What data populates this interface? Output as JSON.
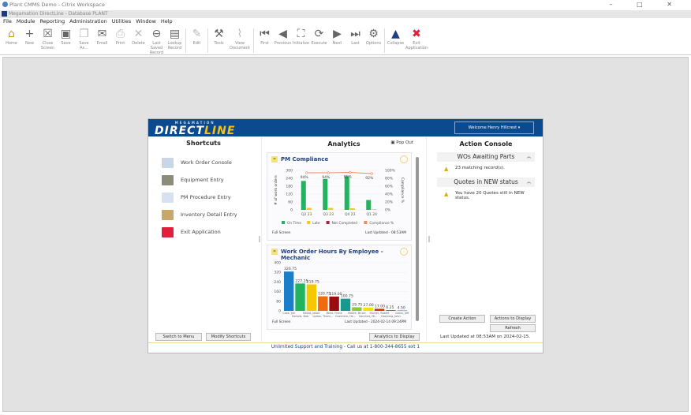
{
  "citrix_title": "Plant CMMS Demo - Citrix Workspace",
  "window_controls": "– □ ✕",
  "app_title": "Megamation DirectLine - Database PLANT",
  "menu": [
    "File",
    "Module",
    "Reporting",
    "Administration",
    "Utilities",
    "Window",
    "Help"
  ],
  "toolbar": [
    {
      "label": "Home",
      "icon": "home-icon",
      "g": "⌂",
      "dis": false
    },
    {
      "label": "New",
      "icon": "plus-icon",
      "g": "+",
      "dis": false
    },
    {
      "label": "Close Screen",
      "icon": "close-screen-icon",
      "g": "☒",
      "dis": false
    },
    {
      "label": "Save",
      "icon": "save-icon",
      "g": "▣",
      "dis": false
    },
    {
      "label": "Save As...",
      "icon": "save-as-icon",
      "g": "❐",
      "dis": true
    },
    {
      "label": "Email",
      "icon": "email-icon",
      "g": "✉",
      "dis": false
    },
    {
      "label": "Print",
      "icon": "print-icon",
      "g": "⎙",
      "dis": true
    },
    {
      "label": "Delete",
      "icon": "delete-icon",
      "g": "✕",
      "dis": true
    },
    {
      "label": "Last Saved Record",
      "icon": "back-circle-icon",
      "g": "⊖",
      "dis": false
    },
    {
      "label": "Lookup Record",
      "icon": "lookup-icon",
      "g": "▤",
      "dis": false
    },
    {
      "sep": true
    },
    {
      "label": "Edit",
      "icon": "edit-icon",
      "g": "✎",
      "dis": true
    },
    {
      "sep": true
    },
    {
      "label": "Tools",
      "icon": "tools-icon",
      "g": "⚒",
      "dis": false
    },
    {
      "label": "View Document",
      "icon": "paperclip-icon",
      "g": "⌇",
      "dis": true,
      "wide": true
    },
    {
      "sep": true
    },
    {
      "label": "First",
      "icon": "first-icon",
      "g": "⏮",
      "dis": false
    },
    {
      "label": "Previous",
      "icon": "previous-icon",
      "g": "◀",
      "dis": false
    },
    {
      "label": "Initialize",
      "icon": "binoculars-icon",
      "g": "⛶",
      "dis": false
    },
    {
      "label": "Execute",
      "icon": "refresh-icon",
      "g": "⟳",
      "dis": false
    },
    {
      "label": "Next",
      "icon": "next-icon",
      "g": "▶",
      "dis": false
    },
    {
      "label": "Last",
      "icon": "last-icon",
      "g": "⏭",
      "dis": false
    },
    {
      "label": "Options",
      "icon": "gear-icon",
      "g": "⚙",
      "dis": false
    },
    {
      "sep": true
    },
    {
      "label": "Collapse",
      "icon": "collapse-icon",
      "g": "▲",
      "dis": false
    },
    {
      "label": "Exit Application",
      "icon": "exit-icon",
      "g": "✖",
      "dis": false,
      "wide": true
    }
  ],
  "header": {
    "logo_top": "MEGAMATION",
    "logo_a": "DIRECT",
    "logo_b": "LINE",
    "welcome": "Welcome  Henry Hillcrest ▾"
  },
  "shortcuts": {
    "title": "Shortcuts",
    "items": [
      {
        "label": "Work Order Console",
        "color": "#c9d6e6"
      },
      {
        "label": "Equipment Entry",
        "color": "#8c8c7a"
      },
      {
        "label": "PM Procedure Entry",
        "color": "#d6e2f0"
      },
      {
        "label": "Inventory Detail Entry",
        "color": "#c8a86a"
      },
      {
        "label": "Exit Application",
        "color": "#e0203a"
      }
    ],
    "switch": "Switch to Menu",
    "modify": "Modify Shortcuts"
  },
  "analytics": {
    "title": "Analytics",
    "popout": "Pop Out",
    "to_display": "Analytics to Display"
  },
  "chart_data": [
    {
      "type": "bar",
      "title": "PM Compliance",
      "ylabel": "# of work orders",
      "y2label": "Compliance %",
      "ylim": [
        0,
        300
      ],
      "y2lim": [
        0,
        100
      ],
      "yticks": [
        0,
        60,
        120,
        180,
        240,
        300
      ],
      "y2ticks": [
        "0%",
        "20%",
        "40%",
        "60%",
        "80%",
        "100%"
      ],
      "categories": [
        "Q2 23",
        "Q3 23",
        "Q4 23",
        "Q1 24"
      ],
      "series": [
        {
          "name": "On Time",
          "color": "#22b35e",
          "values": [
            220,
            235,
            255,
            75
          ]
        },
        {
          "name": "Late",
          "color": "#f2c81a",
          "values": [
            15,
            15,
            12,
            5
          ]
        },
        {
          "name": "Not Completed",
          "color": "#a4243b",
          "values": [
            0,
            0,
            0,
            0
          ]
        },
        {
          "name": "Compliance %",
          "color": "#f08a5d",
          "type": "line",
          "values": [
            94,
            94,
            95,
            92
          ]
        }
      ],
      "data_labels": [
        "94%",
        "94%",
        "95%",
        "92%"
      ],
      "footer_left": "Full Screen",
      "footer_right": "Last Updated - 08:53AM"
    },
    {
      "type": "bar",
      "title": "Work Order Hours By Employee - Mechanic",
      "ylim": [
        0,
        400
      ],
      "yticks": [
        0,
        80,
        160,
        240,
        320,
        400
      ],
      "categories": [
        "Cook, Jim",
        "Nichols, Bob",
        "Beard, Jason",
        "Lipton, Thom...",
        "Bene, Frank",
        "Guerriero, He...",
        "Moore, Bruce",
        "Sanchez, Mi...",
        "Hunter, Robert",
        "Downing, John",
        "Gross, Jeff"
      ],
      "values": [
        326.75,
        227.25,
        219.75,
        120.75,
        119.0,
        100.75,
        29.75,
        27.0,
        17.0,
        6.25,
        4.5
      ],
      "data_labels": [
        "326.75",
        "227.25",
        "219.75",
        "120.75",
        "119.00",
        "100.75",
        "29.75",
        "27.00",
        "17.00",
        "6.25",
        "4.50"
      ],
      "colors": [
        "#1a7fc8",
        "#22b35e",
        "#f5c800",
        "#f06a10",
        "#9a0c10",
        "#16998f",
        "#8cc63f",
        "#f5e000",
        "#d03010",
        "#a05050",
        "#5fa8d3"
      ],
      "footer_left": "Full Screen",
      "footer_right": "Last Updated - 2024-02-14 09:24PM"
    }
  ],
  "action": {
    "title": "Action Console",
    "sections": [
      {
        "title": "WOs Awaiting Parts",
        "msg": "23 matching record(s)."
      },
      {
        "title": "Quotes in NEW status",
        "msg": "You have 20 Quotes still in NEW status."
      }
    ],
    "create": "Create Action",
    "to_display": "Actions to Display",
    "refresh": "Refresh",
    "updated": "Last Updated at 08:53AM on 2024-02-15."
  },
  "footer": "Unlimited Support and Training - Call us at 1-800-344-8655 ext 1"
}
